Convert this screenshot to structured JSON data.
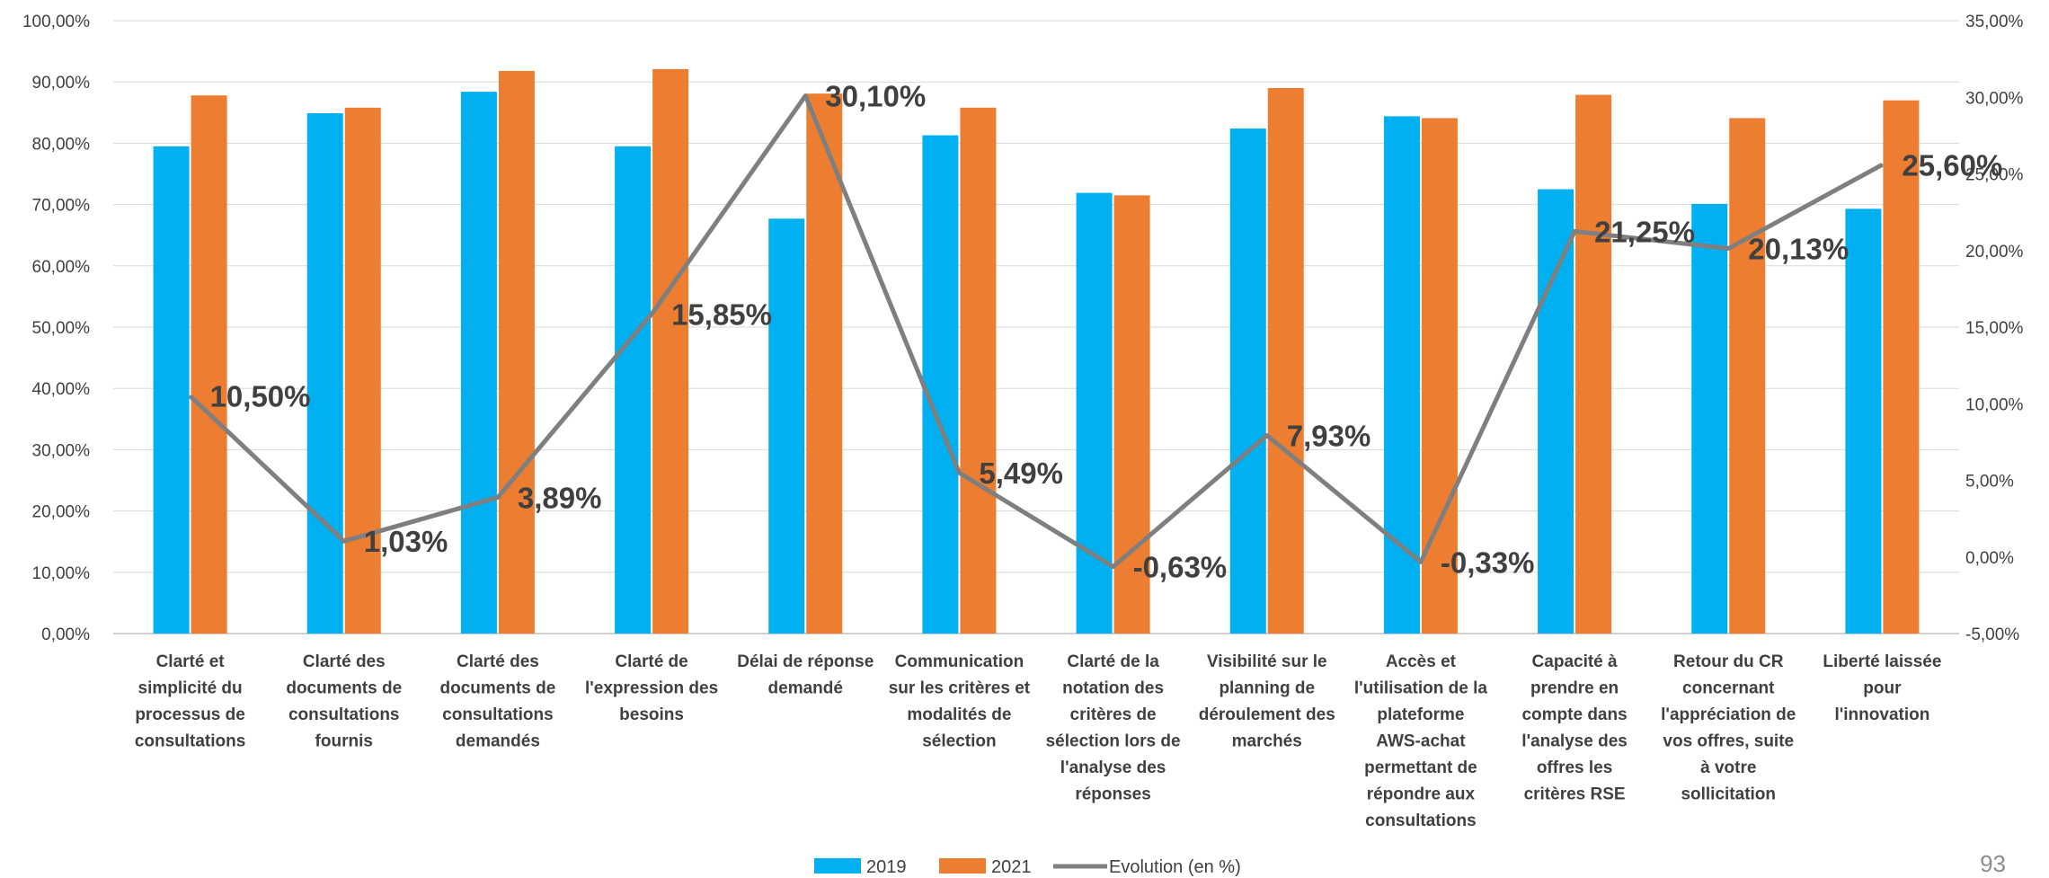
{
  "page_number": "93",
  "chart_data": {
    "type": "bar",
    "categories": [
      "Clarté et simplicité du processus de consultations",
      "Clarté des documents de consultations fournis",
      "Clarté des documents de consultations demandés",
      "Clarté de l'expression des besoins",
      "Délai de réponse demandé",
      "Communication sur les critères et modalités de sélection",
      "Clarté de la notation des critères de sélection lors de l'analyse des réponses",
      "Visibilité sur le planning de déroulement des marchés",
      "Accès et l'utilisation de la plateforme AWS-achat permettant de répondre aux consultations",
      "Capacité à prendre en compte dans l'analyse des offres les critères RSE",
      "Retour du CR concernant l'appréciation de vos offres, suite à votre sollicitation",
      "Liberté laissée pour l'innovation"
    ],
    "category_lines": [
      [
        "Clarté et",
        "simplicité du",
        "processus de",
        "consultations"
      ],
      [
        "Clarté des",
        "documents de",
        "consultations",
        "fournis"
      ],
      [
        "Clarté des",
        "documents de",
        "consultations",
        "demandés"
      ],
      [
        "Clarté de",
        "l'expression des",
        "besoins"
      ],
      [
        "Délai de réponse",
        "demandé"
      ],
      [
        "Communication",
        "sur les critères et",
        "modalités de",
        "sélection"
      ],
      [
        "Clarté de la",
        "notation des",
        "critères de",
        "sélection lors de",
        "l'analyse des",
        "réponses"
      ],
      [
        "Visibilité sur le",
        "planning de",
        "déroulement des",
        "marchés"
      ],
      [
        "Accès et",
        "l'utilisation de la",
        "plateforme",
        "AWS-achat",
        "permettant de",
        "répondre aux",
        "consultations"
      ],
      [
        "Capacité à",
        "prendre en",
        "compte dans",
        "l'analyse des",
        "offres les",
        "critères RSE"
      ],
      [
        "Retour du CR",
        "concernant",
        "l'appréciation de",
        "vos offres, suite",
        "à votre",
        "sollicitation"
      ],
      [
        "Liberté laissée",
        "pour",
        "l'innovation"
      ]
    ],
    "series": [
      {
        "name": "2019",
        "type": "bar",
        "axis": "left",
        "color": "#00B0F0",
        "values": [
          79.5,
          84.9,
          88.4,
          79.5,
          67.7,
          81.3,
          71.9,
          82.4,
          84.4,
          72.5,
          70.1,
          69.3
        ]
      },
      {
        "name": "2021",
        "type": "bar",
        "axis": "left",
        "color": "#ED7D31",
        "values": [
          87.8,
          85.8,
          91.8,
          92.1,
          88.1,
          85.8,
          71.5,
          89.0,
          84.1,
          87.9,
          84.1,
          87.0
        ]
      },
      {
        "name": "Evolution (en %)",
        "type": "line",
        "axis": "right",
        "color": "#7F7F7F",
        "values": [
          10.5,
          1.03,
          3.89,
          15.85,
          30.1,
          5.49,
          -0.63,
          7.93,
          -0.33,
          21.25,
          20.13,
          25.6
        ],
        "labels": [
          "10,50%",
          "1,03%",
          "3,89%",
          "15,85%",
          "30,10%",
          "5,49%",
          "-0,63%",
          "7,93%",
          "-0,33%",
          "21,25%",
          "20,13%",
          "25,60%"
        ]
      }
    ],
    "left_axis": {
      "ylim": [
        0,
        100
      ],
      "ticks": [
        0,
        10,
        20,
        30,
        40,
        50,
        60,
        70,
        80,
        90,
        100
      ],
      "tick_labels": [
        "0,00%",
        "10,00%",
        "20,00%",
        "30,00%",
        "40,00%",
        "50,00%",
        "60,00%",
        "70,00%",
        "80,00%",
        "90,00%",
        "100,00%"
      ]
    },
    "right_axis": {
      "ylim": [
        -5,
        35
      ],
      "ticks": [
        -5,
        0,
        5,
        10,
        15,
        20,
        25,
        30,
        35
      ],
      "tick_labels": [
        "-5,00%",
        "0,00%",
        "5,00%",
        "10,00%",
        "15,00%",
        "20,00%",
        "25,00%",
        "30,00%",
        "35,00%"
      ]
    },
    "grid": true,
    "legend": "bottom-center",
    "xlabel": "",
    "ylabel": "",
    "title": ""
  }
}
